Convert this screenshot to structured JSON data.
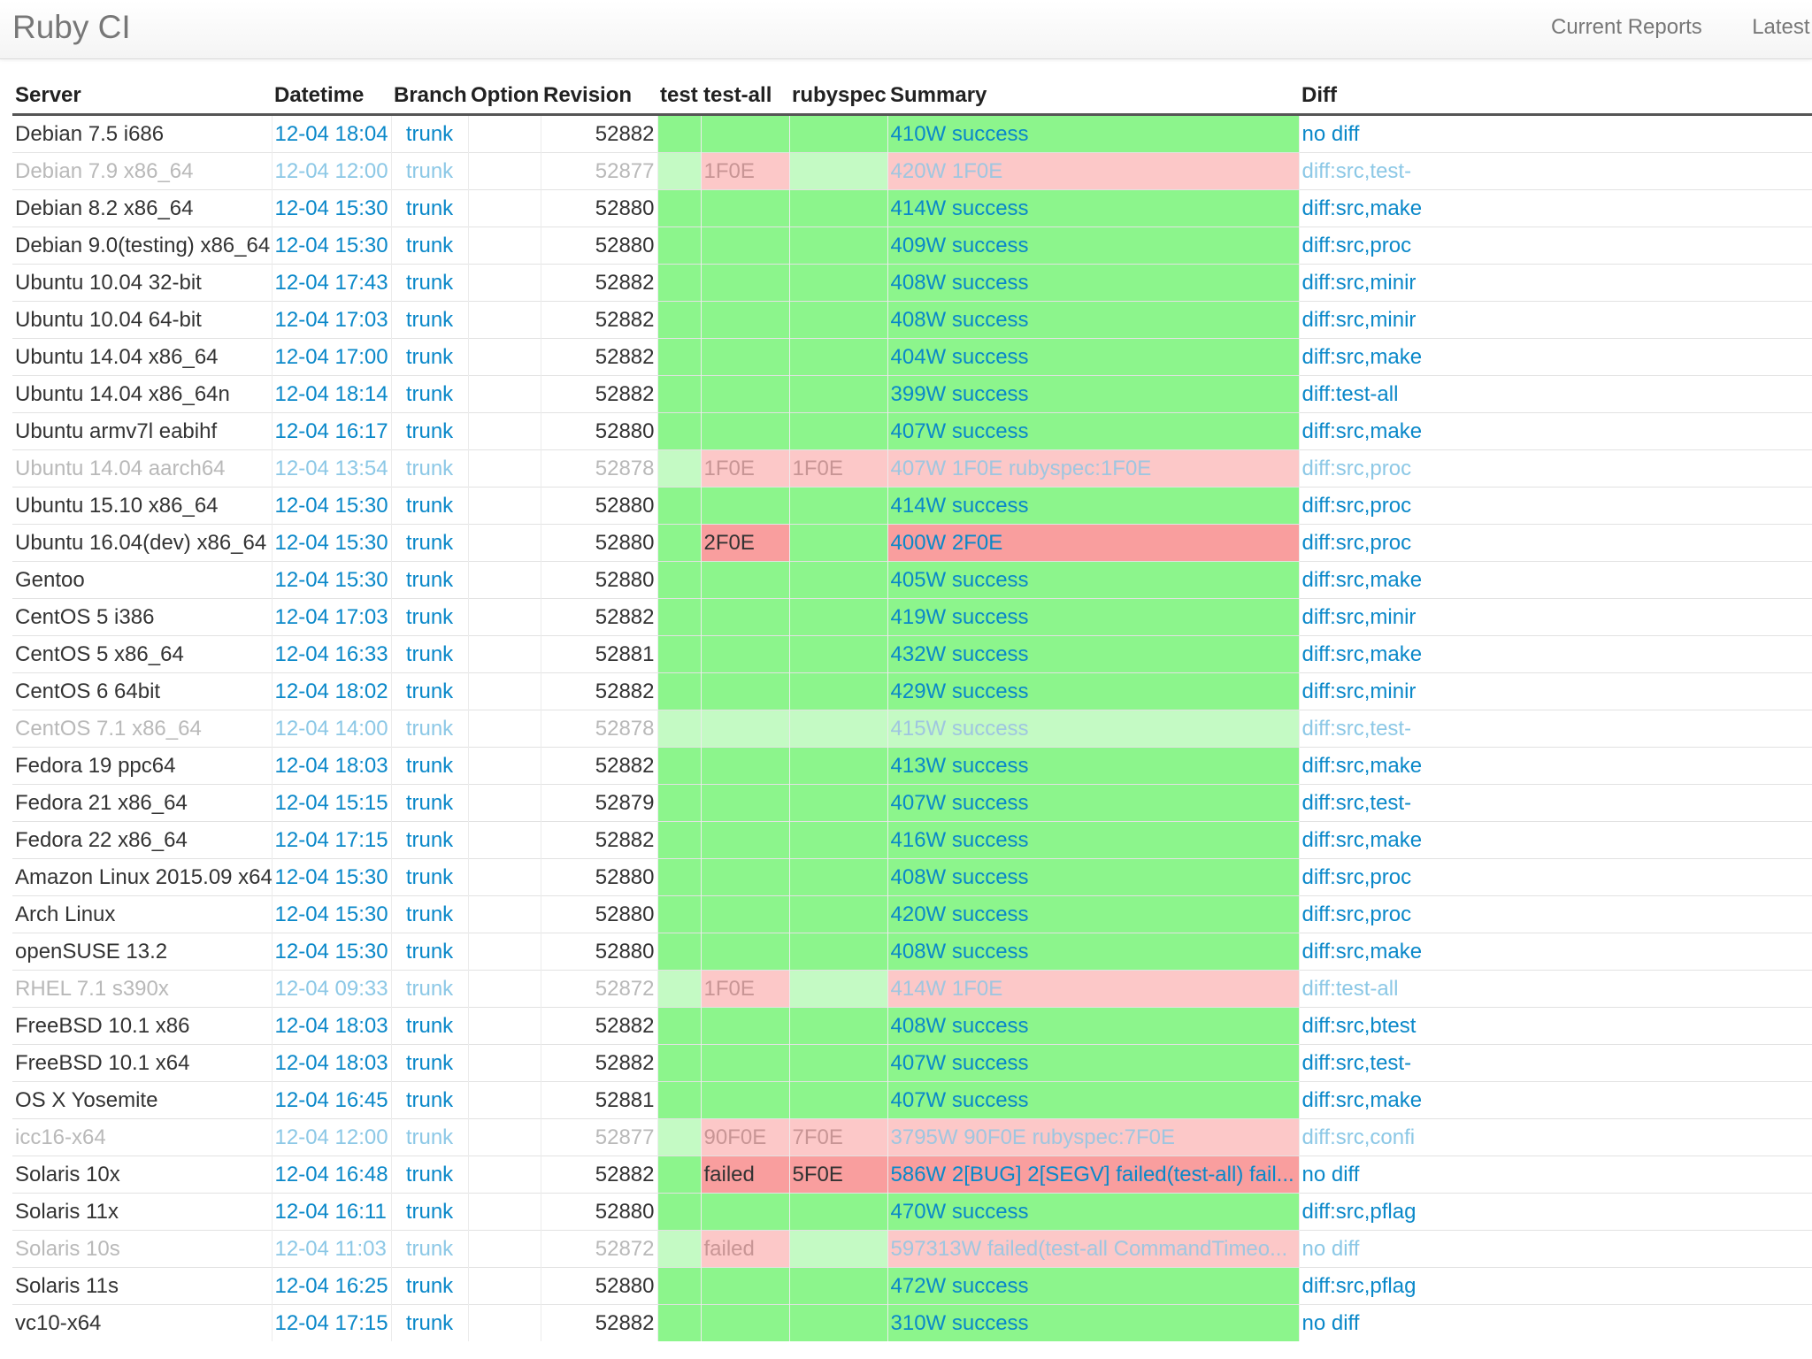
{
  "app": {
    "brand": "Ruby CI",
    "nav": [
      "Current Reports",
      "Latest"
    ]
  },
  "colors": {
    "success": "#8cf58c",
    "success_pale": "#c4fac4",
    "failure": "#f99e9e",
    "failure_pale": "#fcc8c8",
    "link": "#0a88c9"
  },
  "table": {
    "columns": [
      "Server",
      "Datetime",
      "Branch",
      "Option",
      "Revision",
      "test",
      "test-all",
      "rubyspec",
      "Summary",
      "Diff"
    ],
    "rows": [
      {
        "server": "Debian 7.5 i686",
        "datetime": "12-04 18:04",
        "branch": "trunk",
        "option": "",
        "revision": "52882",
        "test": "",
        "test_all": "",
        "rubyspec": "",
        "summary": "410W success",
        "diff": "no diff",
        "status": "ok",
        "dim": false
      },
      {
        "server": "Debian 7.9 x86_64",
        "datetime": "12-04 12:00",
        "branch": "trunk",
        "option": "",
        "revision": "52877",
        "test": "",
        "test_all": "1F0E",
        "rubyspec": "",
        "summary": "420W 1F0E",
        "diff": "diff:src,test-",
        "status": "fail",
        "dim": true
      },
      {
        "server": "Debian 8.2 x86_64",
        "datetime": "12-04 15:30",
        "branch": "trunk",
        "option": "",
        "revision": "52880",
        "test": "",
        "test_all": "",
        "rubyspec": "",
        "summary": "414W success",
        "diff": "diff:src,make",
        "status": "ok",
        "dim": false
      },
      {
        "server": "Debian 9.0(testing) x86_64",
        "datetime": "12-04 15:30",
        "branch": "trunk",
        "option": "",
        "revision": "52880",
        "test": "",
        "test_all": "",
        "rubyspec": "",
        "summary": "409W success",
        "diff": "diff:src,proc",
        "status": "ok",
        "dim": false
      },
      {
        "server": "Ubuntu 10.04 32-bit",
        "datetime": "12-04 17:43",
        "branch": "trunk",
        "option": "",
        "revision": "52882",
        "test": "",
        "test_all": "",
        "rubyspec": "",
        "summary": "408W success",
        "diff": "diff:src,minir",
        "status": "ok",
        "dim": false
      },
      {
        "server": "Ubuntu 10.04 64-bit",
        "datetime": "12-04 17:03",
        "branch": "trunk",
        "option": "",
        "revision": "52882",
        "test": "",
        "test_all": "",
        "rubyspec": "",
        "summary": "408W success",
        "diff": "diff:src,minir",
        "status": "ok",
        "dim": false
      },
      {
        "server": "Ubuntu 14.04 x86_64",
        "datetime": "12-04 17:00",
        "branch": "trunk",
        "option": "",
        "revision": "52882",
        "test": "",
        "test_all": "",
        "rubyspec": "",
        "summary": "404W success",
        "diff": "diff:src,make",
        "status": "ok",
        "dim": false
      },
      {
        "server": "Ubuntu 14.04 x86_64n",
        "datetime": "12-04 18:14",
        "branch": "trunk",
        "option": "",
        "revision": "52882",
        "test": "",
        "test_all": "",
        "rubyspec": "",
        "summary": "399W success",
        "diff": "diff:test-all",
        "status": "ok",
        "dim": false
      },
      {
        "server": "Ubuntu armv7l eabihf",
        "datetime": "12-04 16:17",
        "branch": "trunk",
        "option": "",
        "revision": "52880",
        "test": "",
        "test_all": "",
        "rubyspec": "",
        "summary": "407W success",
        "diff": "diff:src,make",
        "status": "ok",
        "dim": false
      },
      {
        "server": "Ubuntu 14.04 aarch64",
        "datetime": "12-04 13:54",
        "branch": "trunk",
        "option": "",
        "revision": "52878",
        "test": "",
        "test_all": "1F0E",
        "rubyspec": "1F0E",
        "summary": "407W 1F0E rubyspec:1F0E",
        "diff": "diff:src,proc",
        "status": "fail",
        "dim": true
      },
      {
        "server": "Ubuntu 15.10 x86_64",
        "datetime": "12-04 15:30",
        "branch": "trunk",
        "option": "",
        "revision": "52880",
        "test": "",
        "test_all": "",
        "rubyspec": "",
        "summary": "414W success",
        "diff": "diff:src,proc",
        "status": "ok",
        "dim": false
      },
      {
        "server": "Ubuntu 16.04(dev) x86_64",
        "datetime": "12-04 15:30",
        "branch": "trunk",
        "option": "",
        "revision": "52880",
        "test": "",
        "test_all": "2F0E",
        "rubyspec": "",
        "summary": "400W 2F0E",
        "diff": "diff:src,proc",
        "status": "fail",
        "dim": false
      },
      {
        "server": "Gentoo",
        "datetime": "12-04 15:30",
        "branch": "trunk",
        "option": "",
        "revision": "52880",
        "test": "",
        "test_all": "",
        "rubyspec": "",
        "summary": "405W success",
        "diff": "diff:src,make",
        "status": "ok",
        "dim": false
      },
      {
        "server": "CentOS 5 i386",
        "datetime": "12-04 17:03",
        "branch": "trunk",
        "option": "",
        "revision": "52882",
        "test": "",
        "test_all": "",
        "rubyspec": "",
        "summary": "419W success",
        "diff": "diff:src,minir",
        "status": "ok",
        "dim": false
      },
      {
        "server": "CentOS 5 x86_64",
        "datetime": "12-04 16:33",
        "branch": "trunk",
        "option": "",
        "revision": "52881",
        "test": "",
        "test_all": "",
        "rubyspec": "",
        "summary": "432W success",
        "diff": "diff:src,make",
        "status": "ok",
        "dim": false
      },
      {
        "server": "CentOS 6 64bit",
        "datetime": "12-04 18:02",
        "branch": "trunk",
        "option": "",
        "revision": "52882",
        "test": "",
        "test_all": "",
        "rubyspec": "",
        "summary": "429W success",
        "diff": "diff:src,minir",
        "status": "ok",
        "dim": false
      },
      {
        "server": "CentOS 7.1 x86_64",
        "datetime": "12-04 14:00",
        "branch": "trunk",
        "option": "",
        "revision": "52878",
        "test": "",
        "test_all": "",
        "rubyspec": "",
        "summary": "415W success",
        "diff": "diff:src,test-",
        "status": "ok",
        "dim": true
      },
      {
        "server": "Fedora 19 ppc64",
        "datetime": "12-04 18:03",
        "branch": "trunk",
        "option": "",
        "revision": "52882",
        "test": "",
        "test_all": "",
        "rubyspec": "",
        "summary": "413W success",
        "diff": "diff:src,make",
        "status": "ok",
        "dim": false
      },
      {
        "server": "Fedora 21 x86_64",
        "datetime": "12-04 15:15",
        "branch": "trunk",
        "option": "",
        "revision": "52879",
        "test": "",
        "test_all": "",
        "rubyspec": "",
        "summary": "407W success",
        "diff": "diff:src,test-",
        "status": "ok",
        "dim": false
      },
      {
        "server": "Fedora 22 x86_64",
        "datetime": "12-04 17:15",
        "branch": "trunk",
        "option": "",
        "revision": "52882",
        "test": "",
        "test_all": "",
        "rubyspec": "",
        "summary": "416W success",
        "diff": "diff:src,make",
        "status": "ok",
        "dim": false
      },
      {
        "server": "Amazon Linux 2015.09 x64",
        "datetime": "12-04 15:30",
        "branch": "trunk",
        "option": "",
        "revision": "52880",
        "test": "",
        "test_all": "",
        "rubyspec": "",
        "summary": "408W success",
        "diff": "diff:src,proc",
        "status": "ok",
        "dim": false
      },
      {
        "server": "Arch Linux",
        "datetime": "12-04 15:30",
        "branch": "trunk",
        "option": "",
        "revision": "52880",
        "test": "",
        "test_all": "",
        "rubyspec": "",
        "summary": "420W success",
        "diff": "diff:src,proc",
        "status": "ok",
        "dim": false
      },
      {
        "server": "openSUSE 13.2",
        "datetime": "12-04 15:30",
        "branch": "trunk",
        "option": "",
        "revision": "52880",
        "test": "",
        "test_all": "",
        "rubyspec": "",
        "summary": "408W success",
        "diff": "diff:src,make",
        "status": "ok",
        "dim": false
      },
      {
        "server": "RHEL 7.1 s390x",
        "datetime": "12-04 09:33",
        "branch": "trunk",
        "option": "",
        "revision": "52872",
        "test": "",
        "test_all": "1F0E",
        "rubyspec": "",
        "summary": "414W 1F0E",
        "diff": "diff:test-all",
        "status": "fail",
        "dim": true
      },
      {
        "server": "FreeBSD 10.1 x86",
        "datetime": "12-04 18:03",
        "branch": "trunk",
        "option": "",
        "revision": "52882",
        "test": "",
        "test_all": "",
        "rubyspec": "",
        "summary": "408W success",
        "diff": "diff:src,btest",
        "status": "ok",
        "dim": false
      },
      {
        "server": "FreeBSD 10.1 x64",
        "datetime": "12-04 18:03",
        "branch": "trunk",
        "option": "",
        "revision": "52882",
        "test": "",
        "test_all": "",
        "rubyspec": "",
        "summary": "407W success",
        "diff": "diff:src,test-",
        "status": "ok",
        "dim": false
      },
      {
        "server": "OS X Yosemite",
        "datetime": "12-04 16:45",
        "branch": "trunk",
        "option": "",
        "revision": "52881",
        "test": "",
        "test_all": "",
        "rubyspec": "",
        "summary": "407W success",
        "diff": "diff:src,make",
        "status": "ok",
        "dim": false
      },
      {
        "server": "icc16-x64",
        "datetime": "12-04 12:00",
        "branch": "trunk",
        "option": "",
        "revision": "52877",
        "test": "",
        "test_all": "90F0E",
        "rubyspec": "7F0E",
        "summary": "3795W 90F0E rubyspec:7F0E",
        "diff": "diff:src,confi",
        "status": "fail",
        "dim": true
      },
      {
        "server": "Solaris 10x",
        "datetime": "12-04 16:48",
        "branch": "trunk",
        "option": "",
        "revision": "52882",
        "test": "",
        "test_all": "failed",
        "rubyspec": "5F0E",
        "summary": "586W 2[BUG] 2[SEGV] failed(test-all) fail...",
        "diff": "no diff",
        "status": "fail",
        "dim": false
      },
      {
        "server": "Solaris 11x",
        "datetime": "12-04 16:11",
        "branch": "trunk",
        "option": "",
        "revision": "52880",
        "test": "",
        "test_all": "",
        "rubyspec": "",
        "summary": "470W success",
        "diff": "diff:src,pflag",
        "status": "ok",
        "dim": false
      },
      {
        "server": "Solaris 10s",
        "datetime": "12-04 11:03",
        "branch": "trunk",
        "option": "",
        "revision": "52872",
        "test": "",
        "test_all": "failed",
        "rubyspec": "",
        "summary": "597313W failed(test-all CommandTimeo...",
        "diff": "no diff",
        "status": "fail",
        "dim": true
      },
      {
        "server": "Solaris 11s",
        "datetime": "12-04 16:25",
        "branch": "trunk",
        "option": "",
        "revision": "52880",
        "test": "",
        "test_all": "",
        "rubyspec": "",
        "summary": "472W success",
        "diff": "diff:src,pflag",
        "status": "ok",
        "dim": false
      },
      {
        "server": "vc10-x64",
        "datetime": "12-04 17:15",
        "branch": "trunk",
        "option": "",
        "revision": "52882",
        "test": "",
        "test_all": "",
        "rubyspec": "",
        "summary": "310W success",
        "diff": "no diff",
        "status": "ok",
        "dim": false
      }
    ]
  }
}
